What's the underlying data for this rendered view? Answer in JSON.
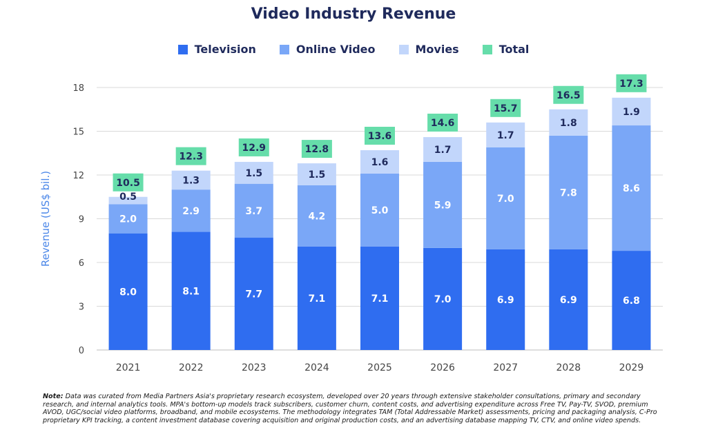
{
  "title": "Video Industry Revenue",
  "legend": [
    {
      "label": "Television",
      "color": "#2f6df0"
    },
    {
      "label": "Online Video",
      "color": "#7aa7f7"
    },
    {
      "label": "Movies",
      "color": "#c2d6fb"
    },
    {
      "label": "Total",
      "color": "#66ddaa"
    }
  ],
  "chart_data": {
    "type": "bar",
    "stacked": true,
    "ylabel": "Revenue (US$ bil.)",
    "ylim": [
      0,
      18
    ],
    "yticks": [
      0,
      3,
      6,
      9,
      12,
      15,
      18
    ],
    "grid": true,
    "legend_position": "top",
    "categories": [
      "2021",
      "2022",
      "2023",
      "2024",
      "2025",
      "2026",
      "2027",
      "2028",
      "2029"
    ],
    "series": [
      {
        "name": "Television",
        "color": "#2f6df0",
        "values": [
          8.0,
          8.1,
          7.7,
          7.1,
          7.1,
          7.0,
          6.9,
          6.9,
          6.8
        ]
      },
      {
        "name": "Online Video",
        "color": "#7aa7f7",
        "values": [
          2.0,
          2.9,
          3.7,
          4.2,
          5.0,
          5.9,
          7.0,
          7.8,
          8.6
        ]
      },
      {
        "name": "Movies",
        "color": "#c2d6fb",
        "values": [
          0.5,
          1.3,
          1.5,
          1.5,
          1.6,
          1.7,
          1.7,
          1.8,
          1.9
        ]
      }
    ],
    "totals": {
      "name": "Total",
      "color": "#66ddaa",
      "values": [
        10.5,
        12.3,
        12.9,
        12.8,
        13.6,
        14.6,
        15.7,
        16.5,
        17.3
      ]
    }
  },
  "note": {
    "label": "Note:",
    "text": " Data was curated from Media Partners Asia's proprietary research ecosystem, developed over 20 years through extensive stakeholder consultations, primary and secondary research, and internal analytics tools. MPA's bottom-up models track subscribers, customer churn, content costs, and advertising expenditure across Free TV, Pay-TV, SVOD, premium AVOD, UGC/social video platforms, broadband, and mobile ecosystems. The methodology integrates TAM (Total Addressable Market) assessments, pricing and packaging analysis, C-Pro proprietary KPI tracking, a content investment database covering acquisition and original production costs, and an advertising database mapping TV, CTV, and online video spends."
  }
}
